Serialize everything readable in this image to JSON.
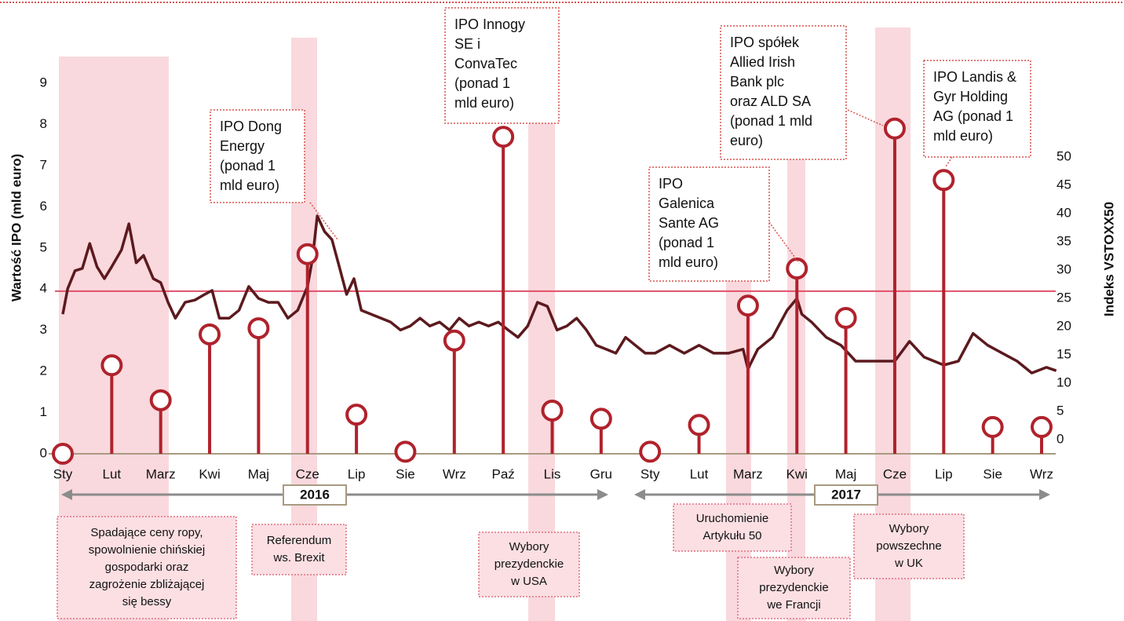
{
  "chart_data": {
    "type": "lollipop",
    "ylabel": "Wartość IPO (mld euro)",
    "y2label": "Indeks VSTOXX50",
    "categories": [
      "Sty",
      "Lut",
      "Marz",
      "Kwi",
      "Maj",
      "Cze",
      "Lip",
      "Sie",
      "Wrz",
      "Paź",
      "Lis",
      "Gru",
      "Sty",
      "Lut",
      "Marz",
      "Kwi",
      "Maj",
      "Cze",
      "Lip",
      "Sie",
      "Wrz"
    ],
    "ylim": [
      0,
      9.65
    ],
    "yticks": [
      0,
      1,
      2,
      3,
      4,
      5,
      6,
      7,
      8,
      9
    ],
    "y2lim": [
      -2.5,
      67.8
    ],
    "y2ticks": [
      0,
      5,
      10,
      15,
      20,
      25,
      30,
      35,
      40,
      45,
      50
    ],
    "series": [
      {
        "type": "lollipop",
        "color": "#b0222c",
        "values": [
          0,
          2.15,
          1.3,
          2.9,
          3.05,
          4.85,
          0.95,
          0.05,
          2.75,
          7.7,
          1.05,
          0.85,
          0.05,
          0.7,
          3.6,
          4.5,
          3.3,
          7.9,
          6.65,
          0.65,
          0.65
        ]
      },
      {
        "type": "line",
        "axis": "y2",
        "color": "#5c1a1e",
        "x": [
          0,
          0.1,
          0.25,
          0.4,
          0.55,
          0.7,
          0.85,
          1.0,
          1.2,
          1.35,
          1.5,
          1.65,
          1.85,
          2.0,
          2.15,
          2.3,
          2.5,
          2.7,
          2.9,
          3.05,
          3.2,
          3.4,
          3.6,
          3.8,
          4.0,
          4.2,
          4.4,
          4.6,
          4.8,
          5.0,
          5.1,
          5.2,
          5.35,
          5.5,
          5.65,
          5.8,
          5.95,
          6.1,
          6.3,
          6.5,
          6.7,
          6.9,
          7.1,
          7.3,
          7.5,
          7.7,
          7.9,
          8.1,
          8.3,
          8.5,
          8.7,
          8.9,
          9.1,
          9.3,
          9.5,
          9.7,
          9.9,
          10.1,
          10.3,
          10.5,
          10.7,
          10.9,
          11.1,
          11.3,
          11.5,
          11.7,
          11.9,
          12.1,
          12.4,
          12.7,
          13.0,
          13.3,
          13.6,
          13.9,
          14.0,
          14.2,
          14.5,
          14.8,
          15.0,
          15.1,
          15.3,
          15.6,
          15.9,
          16.2,
          16.6,
          17.0,
          17.3,
          17.6,
          18.0,
          18.3,
          18.6,
          18.9,
          19.2,
          19.5,
          19.8,
          20.1,
          20.3
        ],
        "values": [
          22.2,
          26.7,
          29.9,
          30.3,
          34.7,
          30.6,
          28.5,
          30.6,
          33.6,
          38.2,
          31.3,
          32.6,
          28.5,
          27.8,
          24.3,
          21.5,
          24.3,
          24.7,
          25.7,
          26.4,
          21.5,
          21.5,
          22.9,
          27.1,
          25.0,
          24.3,
          24.3,
          21.5,
          22.9,
          27.1,
          31.9,
          39.6,
          36.8,
          35.4,
          30.6,
          25.7,
          28.5,
          22.9,
          22.2,
          21.5,
          20.8,
          19.4,
          20.1,
          21.5,
          20.1,
          20.8,
          19.4,
          21.5,
          20.1,
          20.8,
          20.1,
          20.8,
          19.4,
          18.1,
          20.1,
          24.3,
          23.6,
          19.4,
          20.1,
          21.5,
          19.4,
          16.7,
          16.0,
          15.3,
          18.1,
          16.7,
          15.3,
          15.3,
          16.7,
          15.3,
          16.7,
          15.3,
          15.3,
          16.0,
          12.5,
          16.0,
          18.1,
          22.9,
          25.0,
          22.2,
          20.8,
          18.1,
          16.7,
          13.9,
          13.9,
          13.9,
          17.4,
          14.6,
          13.2,
          13.9,
          18.8,
          16.7,
          15.3,
          13.9,
          11.8,
          12.8,
          12.2
        ]
      }
    ],
    "reference_line": {
      "value": 3.95,
      "color": "#e0506a"
    },
    "years": [
      "2016",
      "2017"
    ],
    "callouts": [
      {
        "lines": [
          "IPO Dong",
          "Energy",
          "(ponad 1",
          "mld euro)"
        ]
      },
      {
        "lines": [
          "IPO Innogy",
          "SE i",
          "ConvaTec",
          "(ponad 1",
          "mld euro)"
        ]
      },
      {
        "lines": [
          "IPO spółek",
          "Allied Irish",
          "Bank plc",
          "oraz ALD SA",
          "(ponad 1 mld",
          "euro)"
        ]
      },
      {
        "lines": [
          "IPO",
          "Galenica",
          "Sante AG",
          "(ponad 1",
          "mld euro)"
        ]
      },
      {
        "lines": [
          "IPO Landis &",
          "Gyr Holding",
          "AG (ponad 1",
          "mld euro)"
        ]
      }
    ],
    "events": [
      {
        "lines": [
          "Spadające ceny ropy,",
          "spowolnienie chińskiej",
          "gospodarki oraz",
          "zagrożenie zbliżającej",
          "się bessy"
        ]
      },
      {
        "lines": [
          "Referendum",
          "ws. Brexit"
        ]
      },
      {
        "lines": [
          "Wybory",
          "prezydenckie",
          "w USA"
        ]
      },
      {
        "lines": [
          "Uruchomienie",
          "Artykułu 50"
        ]
      },
      {
        "lines": [
          "Wybory",
          "prezydenckie",
          "we Francji"
        ]
      },
      {
        "lines": [
          "Wybory",
          "powszechne",
          "w UK"
        ]
      }
    ]
  }
}
